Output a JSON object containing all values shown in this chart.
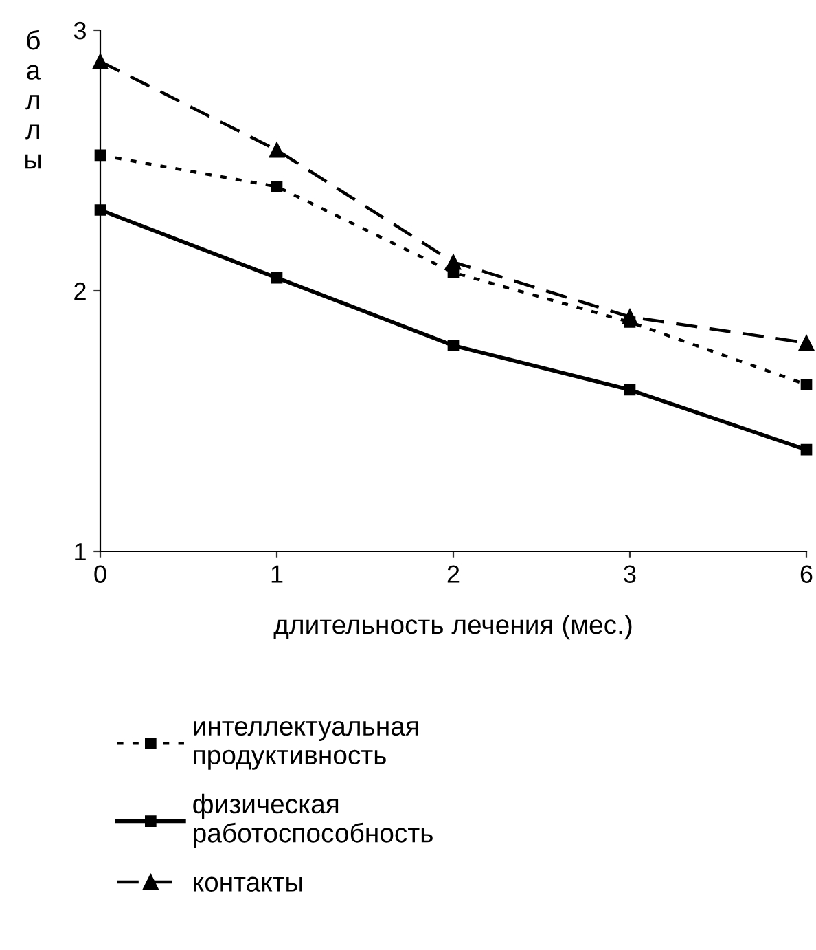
{
  "chart_data": {
    "type": "line",
    "xlabel": "длительность лечения (мес.)",
    "ylabel": "баллы",
    "categories": [
      "0",
      "1",
      "2",
      "3",
      "6"
    ],
    "ylim": [
      1,
      3
    ],
    "yticks": [
      1,
      2,
      3
    ],
    "grid": false,
    "legend": "bottom",
    "series": [
      {
        "name": "интеллектуальная продуктивность",
        "color": "#000000",
        "marker": "square",
        "line_style": "dotted",
        "values": [
          2.52,
          2.4,
          2.07,
          1.88,
          1.64
        ]
      },
      {
        "name": "физическая работоспособность",
        "color": "#000000",
        "marker": "square",
        "line_style": "solid",
        "values": [
          2.31,
          2.05,
          1.79,
          1.62,
          1.39
        ]
      },
      {
        "name": "контакты",
        "color": "#000000",
        "marker": "triangle",
        "line_style": "dashed",
        "values": [
          2.88,
          2.54,
          2.11,
          1.9,
          1.8
        ]
      }
    ]
  }
}
